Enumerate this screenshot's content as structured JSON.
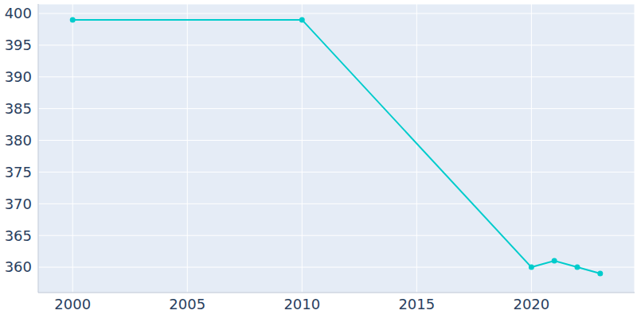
{
  "chart_data": {
    "type": "line",
    "x": [
      2000,
      2010,
      2020,
      2021,
      2022,
      2023
    ],
    "values": [
      399,
      399,
      360,
      361,
      360,
      359
    ],
    "color": "#00cccc",
    "xlim": [
      1998.5,
      2024.5
    ],
    "xticks": [
      2000,
      2005,
      2010,
      2015,
      2020
    ],
    "ylim": [
      356,
      401.5
    ],
    "yticks": [
      360,
      365,
      370,
      375,
      380,
      385,
      390,
      395,
      400
    ],
    "grid": true,
    "marker": "circle"
  }
}
